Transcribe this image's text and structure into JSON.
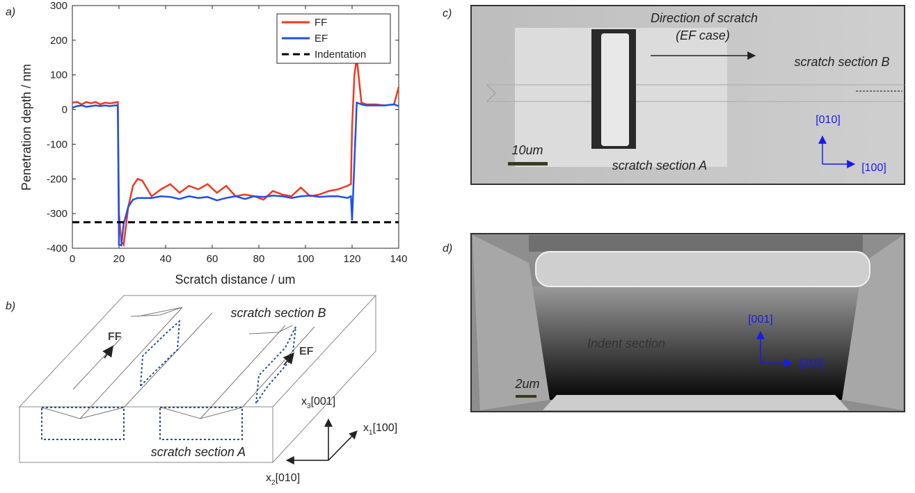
{
  "panel_a": {
    "label": "a)"
  },
  "chart_data": {
    "type": "line",
    "xlabel": "Scratch distance / um",
    "ylabel": "Penetration depth / nm",
    "x": [
      0,
      2,
      4,
      6,
      8,
      10,
      12,
      14,
      16,
      18,
      19.5,
      20,
      21,
      22,
      24,
      26,
      28,
      30,
      34,
      38,
      42,
      46,
      50,
      54,
      58,
      62,
      66,
      70,
      74,
      78,
      82,
      86,
      90,
      94,
      98,
      102,
      106,
      110,
      114,
      118,
      119.5,
      120,
      121,
      122,
      124,
      126,
      130,
      134,
      138,
      140
    ],
    "xlim": [
      0,
      140
    ],
    "ylim": [
      -400,
      300
    ],
    "xticks": [
      0,
      20,
      40,
      60,
      80,
      100,
      120,
      140
    ],
    "yticks": [
      -400,
      -300,
      -200,
      -100,
      0,
      100,
      200,
      300
    ],
    "grid": false,
    "legend": "upper right",
    "series": [
      {
        "name": "FF",
        "color": "#f0371f",
        "values": [
          20,
          22,
          15,
          22,
          18,
          22,
          15,
          20,
          18,
          20,
          22,
          -300,
          -380,
          -390,
          -280,
          -220,
          -200,
          -205,
          -250,
          -230,
          -215,
          -240,
          -220,
          -230,
          -215,
          -240,
          -220,
          -250,
          -245,
          -250,
          -260,
          -235,
          -245,
          -250,
          -225,
          -250,
          -245,
          -235,
          -230,
          -220,
          -215,
          -50,
          100,
          150,
          20,
          15,
          15,
          12,
          15,
          65
        ]
      },
      {
        "name": "EF",
        "color": "#1d4ff0",
        "values": [
          5,
          10,
          12,
          8,
          10,
          12,
          10,
          12,
          10,
          12,
          12,
          -390,
          -392,
          -330,
          -280,
          -260,
          -255,
          -255,
          -255,
          -250,
          -252,
          -258,
          -250,
          -255,
          -252,
          -262,
          -255,
          -250,
          -258,
          -250,
          -252,
          -248,
          -250,
          -255,
          -250,
          -248,
          -252,
          -250,
          -250,
          -255,
          -250,
          -320,
          -150,
          20,
          15,
          12,
          12,
          12,
          15,
          10
        ]
      },
      {
        "name": "Indentation",
        "color": "#000000",
        "dashed": true,
        "x": [
          0,
          140
        ],
        "values": [
          -325,
          -325
        ]
      }
    ]
  },
  "panel_b": {
    "label": "b)",
    "section_b": "scratch section B",
    "ff": "FF",
    "ef": "EF",
    "section_a": "scratch section A",
    "axes": [
      {
        "var": "x",
        "sub": "3",
        "dir": "[001]"
      },
      {
        "var": "x",
        "sub": "1",
        "dir": "[100]"
      },
      {
        "var": "x",
        "sub": "2",
        "dir": "[010]"
      }
    ]
  },
  "panel_c": {
    "label": "c)",
    "direction": "Direction of scratch",
    "case": "(EF case)",
    "section_b": "scratch section B",
    "axis_up": "[010]",
    "axis_right": "[100]",
    "scale": "10um",
    "section_a": "scratch section A"
  },
  "panel_d": {
    "label": "d)",
    "axis_up": "[001]",
    "axis_right": "[01̄0]",
    "section": "Indent section",
    "scale": "2um"
  }
}
